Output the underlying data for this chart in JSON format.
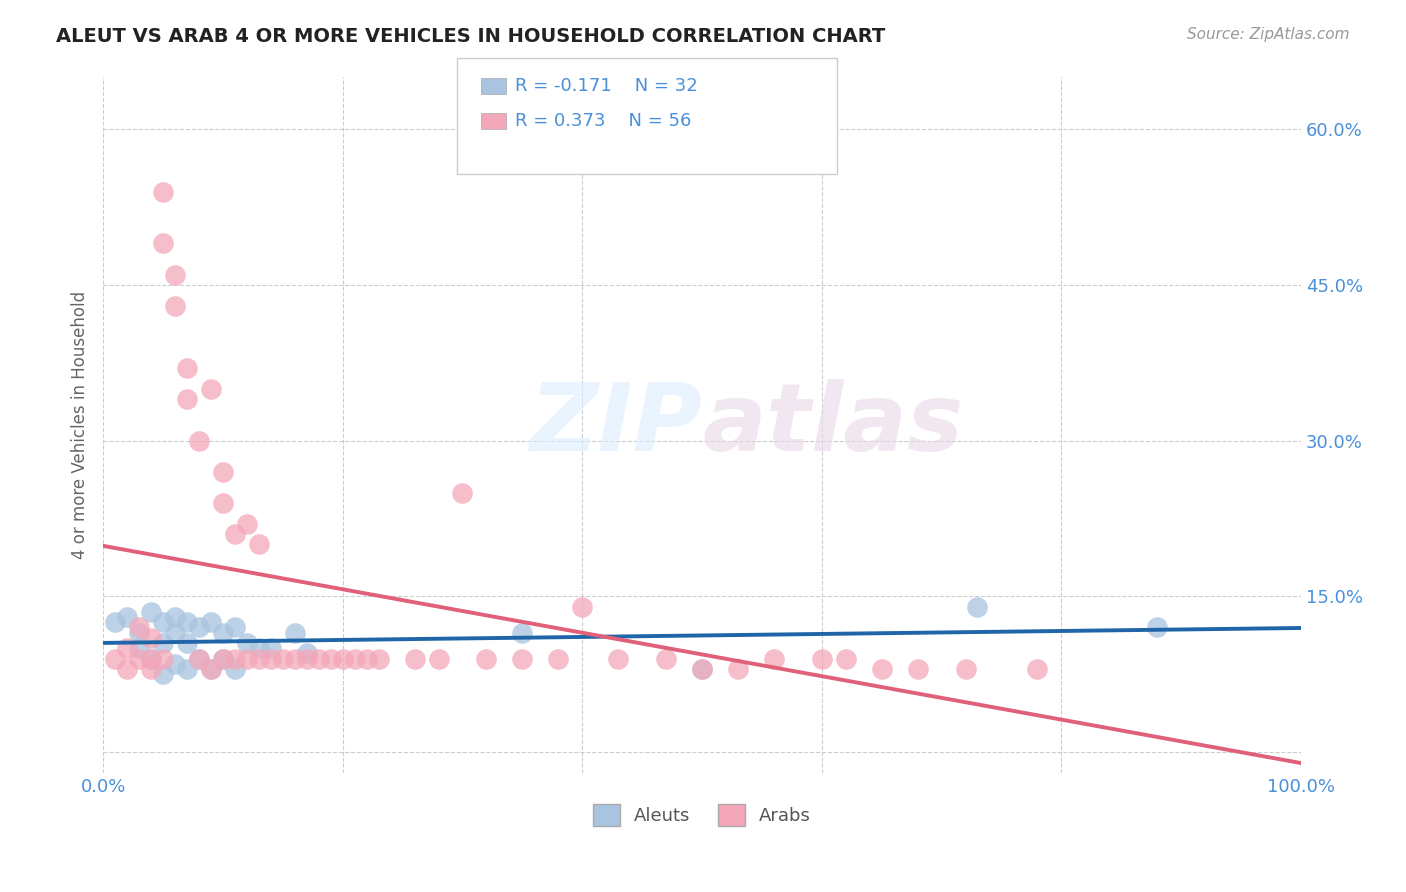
{
  "title": "ALEUT VS ARAB 4 OR MORE VEHICLES IN HOUSEHOLD CORRELATION CHART",
  "source_text": "Source: ZipAtlas.com",
  "ylabel": "4 or more Vehicles in Household",
  "xlim": [
    0,
    1.0
  ],
  "ylim": [
    -0.02,
    0.65
  ],
  "xticks": [
    0.0,
    0.2,
    0.4,
    0.6,
    0.8,
    1.0
  ],
  "yticks": [
    0.0,
    0.15,
    0.3,
    0.45,
    0.6
  ],
  "yticklabels": [
    "",
    "15.0%",
    "30.0%",
    "45.0%",
    "60.0%"
  ],
  "watermark_zip": "ZIP",
  "watermark_atlas": "atlas",
  "aleut_color": "#a8c4e0",
  "arab_color": "#f4a7b9",
  "aleut_line_color": "#2065a8",
  "arab_line_color": "#e0607a",
  "background_color": "#ffffff",
  "grid_color": "#cccccc",
  "title_color": "#222222",
  "axis_label_color": "#4a90d9",
  "aleuts_x": [
    0.01,
    0.02,
    0.03,
    0.03,
    0.04,
    0.04,
    0.05,
    0.05,
    0.05,
    0.06,
    0.06,
    0.06,
    0.07,
    0.07,
    0.07,
    0.08,
    0.08,
    0.09,
    0.09,
    0.1,
    0.1,
    0.11,
    0.11,
    0.12,
    0.13,
    0.14,
    0.16,
    0.17,
    0.35,
    0.5,
    0.73,
    0.88
  ],
  "aleuts_y": [
    0.125,
    0.13,
    0.115,
    0.1,
    0.135,
    0.09,
    0.125,
    0.105,
    0.075,
    0.13,
    0.115,
    0.085,
    0.125,
    0.105,
    0.08,
    0.12,
    0.09,
    0.125,
    0.08,
    0.115,
    0.09,
    0.12,
    0.08,
    0.105,
    0.1,
    0.1,
    0.115,
    0.095,
    0.115,
    0.08,
    0.14,
    0.12
  ],
  "arabs_x": [
    0.01,
    0.02,
    0.02,
    0.03,
    0.03,
    0.04,
    0.04,
    0.04,
    0.05,
    0.05,
    0.05,
    0.06,
    0.06,
    0.07,
    0.07,
    0.08,
    0.08,
    0.09,
    0.09,
    0.1,
    0.1,
    0.1,
    0.11,
    0.11,
    0.12,
    0.12,
    0.13,
    0.13,
    0.14,
    0.15,
    0.16,
    0.17,
    0.18,
    0.19,
    0.2,
    0.21,
    0.22,
    0.23,
    0.26,
    0.28,
    0.3,
    0.32,
    0.35,
    0.38,
    0.4,
    0.43,
    0.47,
    0.5,
    0.53,
    0.56,
    0.6,
    0.62,
    0.65,
    0.68,
    0.72,
    0.78
  ],
  "arabs_y": [
    0.09,
    0.1,
    0.08,
    0.12,
    0.09,
    0.11,
    0.09,
    0.08,
    0.54,
    0.49,
    0.09,
    0.46,
    0.43,
    0.37,
    0.34,
    0.3,
    0.09,
    0.35,
    0.08,
    0.27,
    0.24,
    0.09,
    0.21,
    0.09,
    0.09,
    0.22,
    0.2,
    0.09,
    0.09,
    0.09,
    0.09,
    0.09,
    0.09,
    0.09,
    0.09,
    0.09,
    0.09,
    0.09,
    0.09,
    0.09,
    0.25,
    0.09,
    0.09,
    0.09,
    0.14,
    0.09,
    0.09,
    0.08,
    0.08,
    0.09,
    0.09,
    0.09,
    0.08,
    0.08,
    0.08,
    0.08
  ]
}
